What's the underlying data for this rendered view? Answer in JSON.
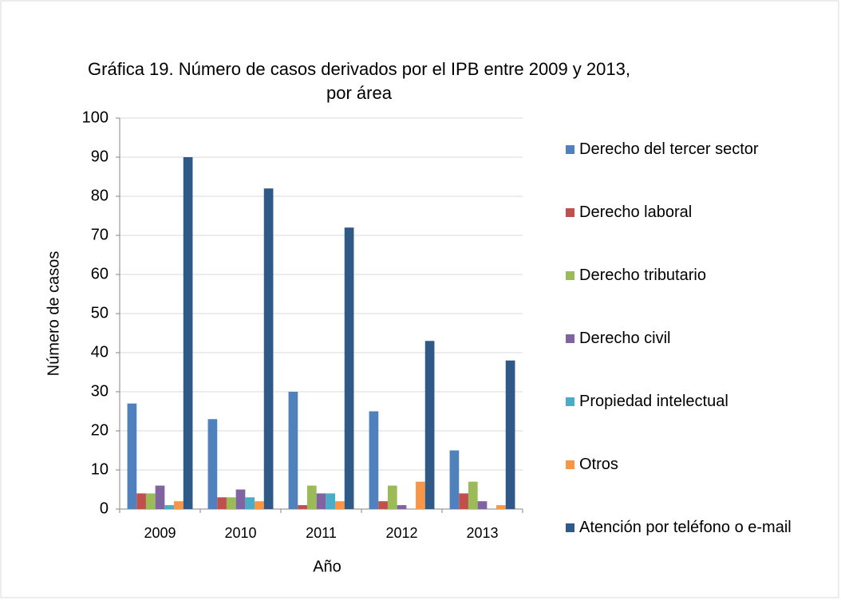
{
  "chart_data": {
    "type": "bar",
    "title": "Gráfica 19. Número de casos derivados por el IPB entre 2009 y 2013, por área",
    "x_label": "Año",
    "y_label": "Número de casos",
    "categories": [
      "2009",
      "2010",
      "2011",
      "2012",
      "2013"
    ],
    "series": [
      {
        "name": "Derecho del tercer sector",
        "color": "#4f81bd",
        "values": [
          27,
          23,
          30,
          25,
          15
        ]
      },
      {
        "name": "Derecho laboral",
        "color": "#c0504d",
        "values": [
          4,
          3,
          1,
          2,
          4
        ]
      },
      {
        "name": "Derecho tributario",
        "color": "#9bbb59",
        "values": [
          4,
          3,
          6,
          6,
          7
        ]
      },
      {
        "name": "Derecho civil",
        "color": "#8064a2",
        "values": [
          6,
          5,
          4,
          1,
          2
        ]
      },
      {
        "name": "Propiedad intelectual",
        "color": "#4bacc6",
        "values": [
          1,
          3,
          4,
          0,
          0
        ]
      },
      {
        "name": "Otros",
        "color": "#f79646",
        "values": [
          2,
          2,
          2,
          7,
          1
        ]
      },
      {
        "name": "Atención por teléfono o e-mail",
        "color": "#2f5a87",
        "values": [
          90,
          82,
          72,
          43,
          38
        ]
      }
    ],
    "ylim": [
      0,
      100
    ],
    "yticks": [
      0,
      10,
      20,
      30,
      40,
      50,
      60,
      70,
      80,
      90,
      100
    ],
    "grid": true,
    "legend": "right"
  }
}
